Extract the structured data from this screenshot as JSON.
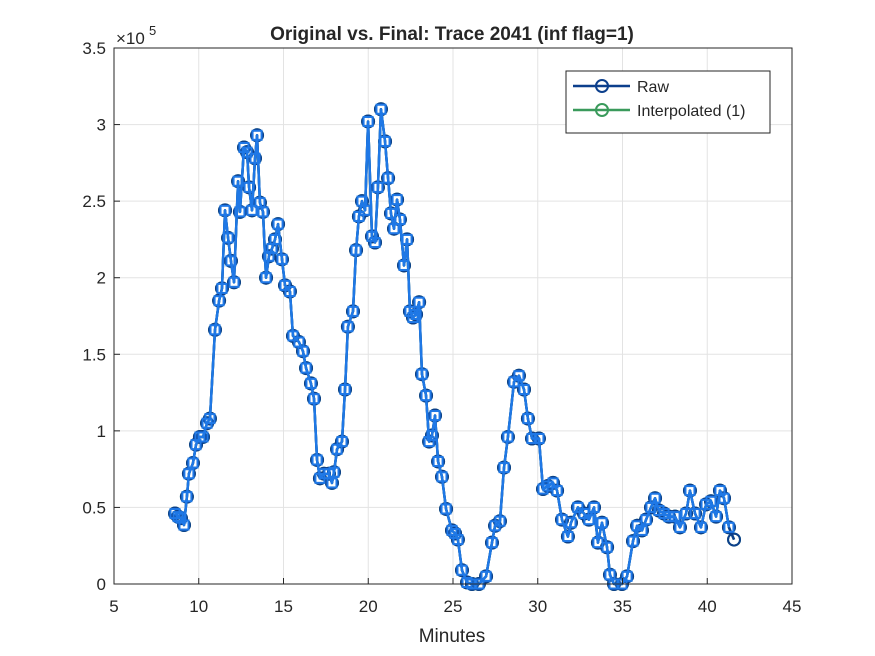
{
  "chart_data": {
    "type": "line",
    "title": "Original vs. Final: Trace 2041 (inf flag=1)",
    "x_label": "Minutes",
    "y_multiplier": {
      "base": "×10",
      "exponent": "5"
    },
    "xlim": [
      5,
      45
    ],
    "xticks": [
      5,
      10,
      15,
      20,
      25,
      30,
      35,
      40,
      45
    ],
    "ylim": [
      0,
      3.5
    ],
    "yticks": [
      0,
      0.5,
      1,
      1.5,
      2,
      2.5,
      3,
      3.5
    ],
    "grid": true,
    "legend_position": "northeast",
    "x": [
      8.6,
      8.78,
      8.95,
      9.13,
      9.3,
      9.42,
      9.66,
      9.84,
      10.07,
      10.25,
      10.49,
      10.66,
      10.96,
      11.2,
      11.37,
      11.55,
      11.73,
      11.9,
      12.08,
      12.32,
      12.43,
      12.67,
      12.85,
      12.97,
      13.14,
      13.32,
      13.44,
      13.61,
      13.79,
      13.97,
      14.14,
      14.32,
      14.5,
      14.68,
      14.91,
      15.09,
      15.38,
      15.56,
      15.91,
      16.15,
      16.33,
      16.62,
      16.8,
      16.98,
      17.15,
      17.39,
      17.68,
      17.86,
      17.98,
      18.16,
      18.45,
      18.63,
      18.8,
      19.1,
      19.28,
      19.45,
      19.63,
      19.81,
      19.99,
      20.22,
      20.4,
      20.57,
      20.75,
      20.99,
      21.17,
      21.34,
      21.52,
      21.7,
      21.87,
      22.11,
      22.29,
      22.46,
      22.64,
      22.82,
      23.0,
      23.17,
      23.41,
      23.59,
      23.76,
      23.94,
      24.12,
      24.35,
      24.59,
      24.94,
      25.12,
      25.29,
      25.53,
      25.83,
      26.12,
      26.53,
      26.95,
      27.3,
      27.48,
      27.77,
      28.01,
      28.24,
      28.6,
      28.89,
      29.19,
      29.42,
      29.66,
      30.07,
      30.31,
      30.6,
      30.9,
      31.14,
      31.43,
      31.78,
      31.96,
      32.37,
      32.73,
      33.02,
      33.32,
      33.55,
      33.79,
      34.09,
      34.26,
      34.5,
      34.97,
      35.27,
      35.62,
      35.86,
      36.15,
      36.39,
      36.68,
      36.92,
      37.15,
      37.45,
      37.74,
      38.1,
      38.39,
      38.75,
      38.98,
      39.28,
      39.63,
      39.93,
      40.22,
      40.52,
      40.75,
      40.99,
      41.28,
      41.58
    ],
    "series": [
      {
        "name": "Interpolated (1)",
        "color": "#3a9a5b",
        "marker": "circle",
        "values": [
          0.46,
          0.44,
          0.43,
          0.385,
          0.57,
          0.72,
          0.79,
          0.91,
          0.96,
          0.96,
          1.05,
          1.08,
          1.66,
          1.85,
          1.93,
          2.44,
          2.26,
          2.11,
          1.97,
          2.63,
          2.43,
          2.85,
          2.82,
          2.59,
          2.44,
          2.78,
          2.93,
          2.49,
          2.43,
          2.0,
          2.14,
          2.19,
          2.25,
          2.35,
          2.12,
          1.95,
          1.91,
          1.62,
          1.58,
          1.52,
          1.41,
          1.31,
          1.21,
          0.81,
          0.69,
          0.72,
          0.72,
          0.66,
          0.73,
          0.88,
          0.93,
          1.27,
          1.68,
          1.78,
          2.18,
          2.4,
          2.5,
          2.44,
          3.02,
          2.27,
          2.23,
          2.59,
          3.1,
          2.89,
          2.65,
          2.42,
          2.32,
          2.51,
          2.38,
          2.08,
          2.25,
          1.78,
          1.74,
          1.76,
          1.84,
          1.37,
          1.23,
          0.93,
          0.97,
          1.1,
          0.8,
          0.7,
          0.49,
          0.35,
          0.33,
          0.29,
          0.09,
          0.01,
          0.0,
          0.0,
          0.05,
          0.27,
          0.38,
          0.41,
          0.76,
          0.96,
          1.32,
          1.36,
          1.27,
          1.08,
          0.95,
          0.95,
          0.62,
          0.64,
          0.66,
          0.61,
          0.42,
          0.31,
          0.4,
          0.5,
          0.46,
          0.42,
          0.5,
          0.27,
          0.4,
          0.24,
          0.06,
          0.0,
          0.0,
          0.05,
          0.28,
          0.38,
          0.35,
          0.42,
          0.5,
          0.56,
          0.48,
          0.46,
          0.44,
          0.44,
          0.37,
          0.46,
          0.61,
          0.46,
          0.37,
          0.52,
          0.54,
          0.44,
          0.61,
          0.56,
          0.37,
          0.29
        ]
      },
      {
        "name": "Raw",
        "color": "#0c3f8c",
        "marker": "circle",
        "values": [
          0.46,
          0.44,
          0.43,
          0.385,
          0.57,
          0.72,
          0.79,
          0.91,
          0.96,
          0.96,
          1.05,
          1.08,
          1.66,
          1.85,
          1.93,
          2.44,
          2.26,
          2.11,
          1.97,
          2.63,
          2.43,
          2.85,
          2.82,
          2.59,
          2.44,
          2.78,
          2.93,
          2.49,
          2.43,
          2.0,
          2.14,
          2.19,
          2.25,
          2.35,
          2.12,
          1.95,
          1.91,
          1.62,
          1.58,
          1.52,
          1.41,
          1.31,
          1.21,
          0.81,
          0.69,
          0.72,
          0.72,
          0.66,
          0.73,
          0.88,
          0.93,
          1.27,
          1.68,
          1.78,
          2.18,
          2.4,
          2.5,
          2.44,
          3.02,
          2.27,
          2.23,
          2.59,
          3.1,
          2.89,
          2.65,
          2.42,
          2.32,
          2.51,
          2.38,
          2.08,
          2.25,
          1.78,
          1.74,
          1.76,
          1.84,
          1.37,
          1.23,
          0.93,
          0.97,
          1.1,
          0.8,
          0.7,
          0.49,
          0.35,
          0.33,
          0.29,
          0.09,
          0.01,
          0.0,
          0.0,
          0.05,
          0.27,
          0.38,
          0.41,
          0.76,
          0.96,
          1.32,
          1.36,
          1.27,
          1.08,
          0.95,
          0.95,
          0.62,
          0.64,
          0.66,
          0.61,
          0.42,
          0.31,
          0.4,
          0.5,
          0.46,
          0.42,
          0.5,
          0.27,
          0.4,
          0.24,
          0.06,
          0.0,
          0.0,
          0.05,
          0.28,
          0.38,
          0.35,
          0.42,
          0.5,
          0.56,
          0.48,
          0.46,
          0.44,
          0.44,
          0.37,
          0.46,
          0.61,
          0.46,
          0.37,
          0.52,
          0.54,
          0.44,
          0.61,
          0.56,
          0.37,
          0.29
        ]
      },
      {
        "color": "#1f78e6",
        "marker": "square",
        "values": [
          0.46,
          0.44,
          0.43,
          0.385,
          0.57,
          0.72,
          0.79,
          0.91,
          0.96,
          0.96,
          1.05,
          1.08,
          1.66,
          1.85,
          1.93,
          2.44,
          2.26,
          2.11,
          1.97,
          2.63,
          2.43,
          2.85,
          2.82,
          2.59,
          2.44,
          2.78,
          2.93,
          2.49,
          2.43,
          2.0,
          2.14,
          2.19,
          2.25,
          2.35,
          2.12,
          1.95,
          1.91,
          1.62,
          1.58,
          1.52,
          1.41,
          1.31,
          1.21,
          0.81,
          0.69,
          0.72,
          0.72,
          0.66,
          0.73,
          0.88,
          0.93,
          1.27,
          1.68,
          1.78,
          2.18,
          2.4,
          2.5,
          2.44,
          3.02,
          2.27,
          2.23,
          2.59,
          3.1,
          2.89,
          2.65,
          2.42,
          2.32,
          2.51,
          2.38,
          2.08,
          2.25,
          1.78,
          1.74,
          1.76,
          1.84,
          1.37,
          1.23,
          0.93,
          0.97,
          1.1,
          0.8,
          0.7,
          0.49,
          0.35,
          0.33,
          0.29,
          0.09,
          0.01,
          0.0,
          0.0,
          0.05,
          0.27,
          0.38,
          0.41,
          0.76,
          0.96,
          1.32,
          1.36,
          1.27,
          1.08,
          0.95,
          0.95,
          0.62,
          0.64,
          0.66,
          0.61,
          0.42,
          0.31,
          0.4,
          0.5,
          0.46,
          0.42,
          0.5,
          0.27,
          0.4,
          0.24,
          0.06,
          0.0,
          0.0,
          0.05,
          0.28,
          0.38,
          0.35,
          0.42,
          0.5,
          0.56,
          0.48,
          0.46,
          0.44,
          0.44,
          0.37,
          0.46,
          0.61,
          0.46,
          0.37,
          0.52,
          0.54,
          0.44,
          0.61,
          0.56,
          0.37,
          null
        ]
      }
    ]
  }
}
